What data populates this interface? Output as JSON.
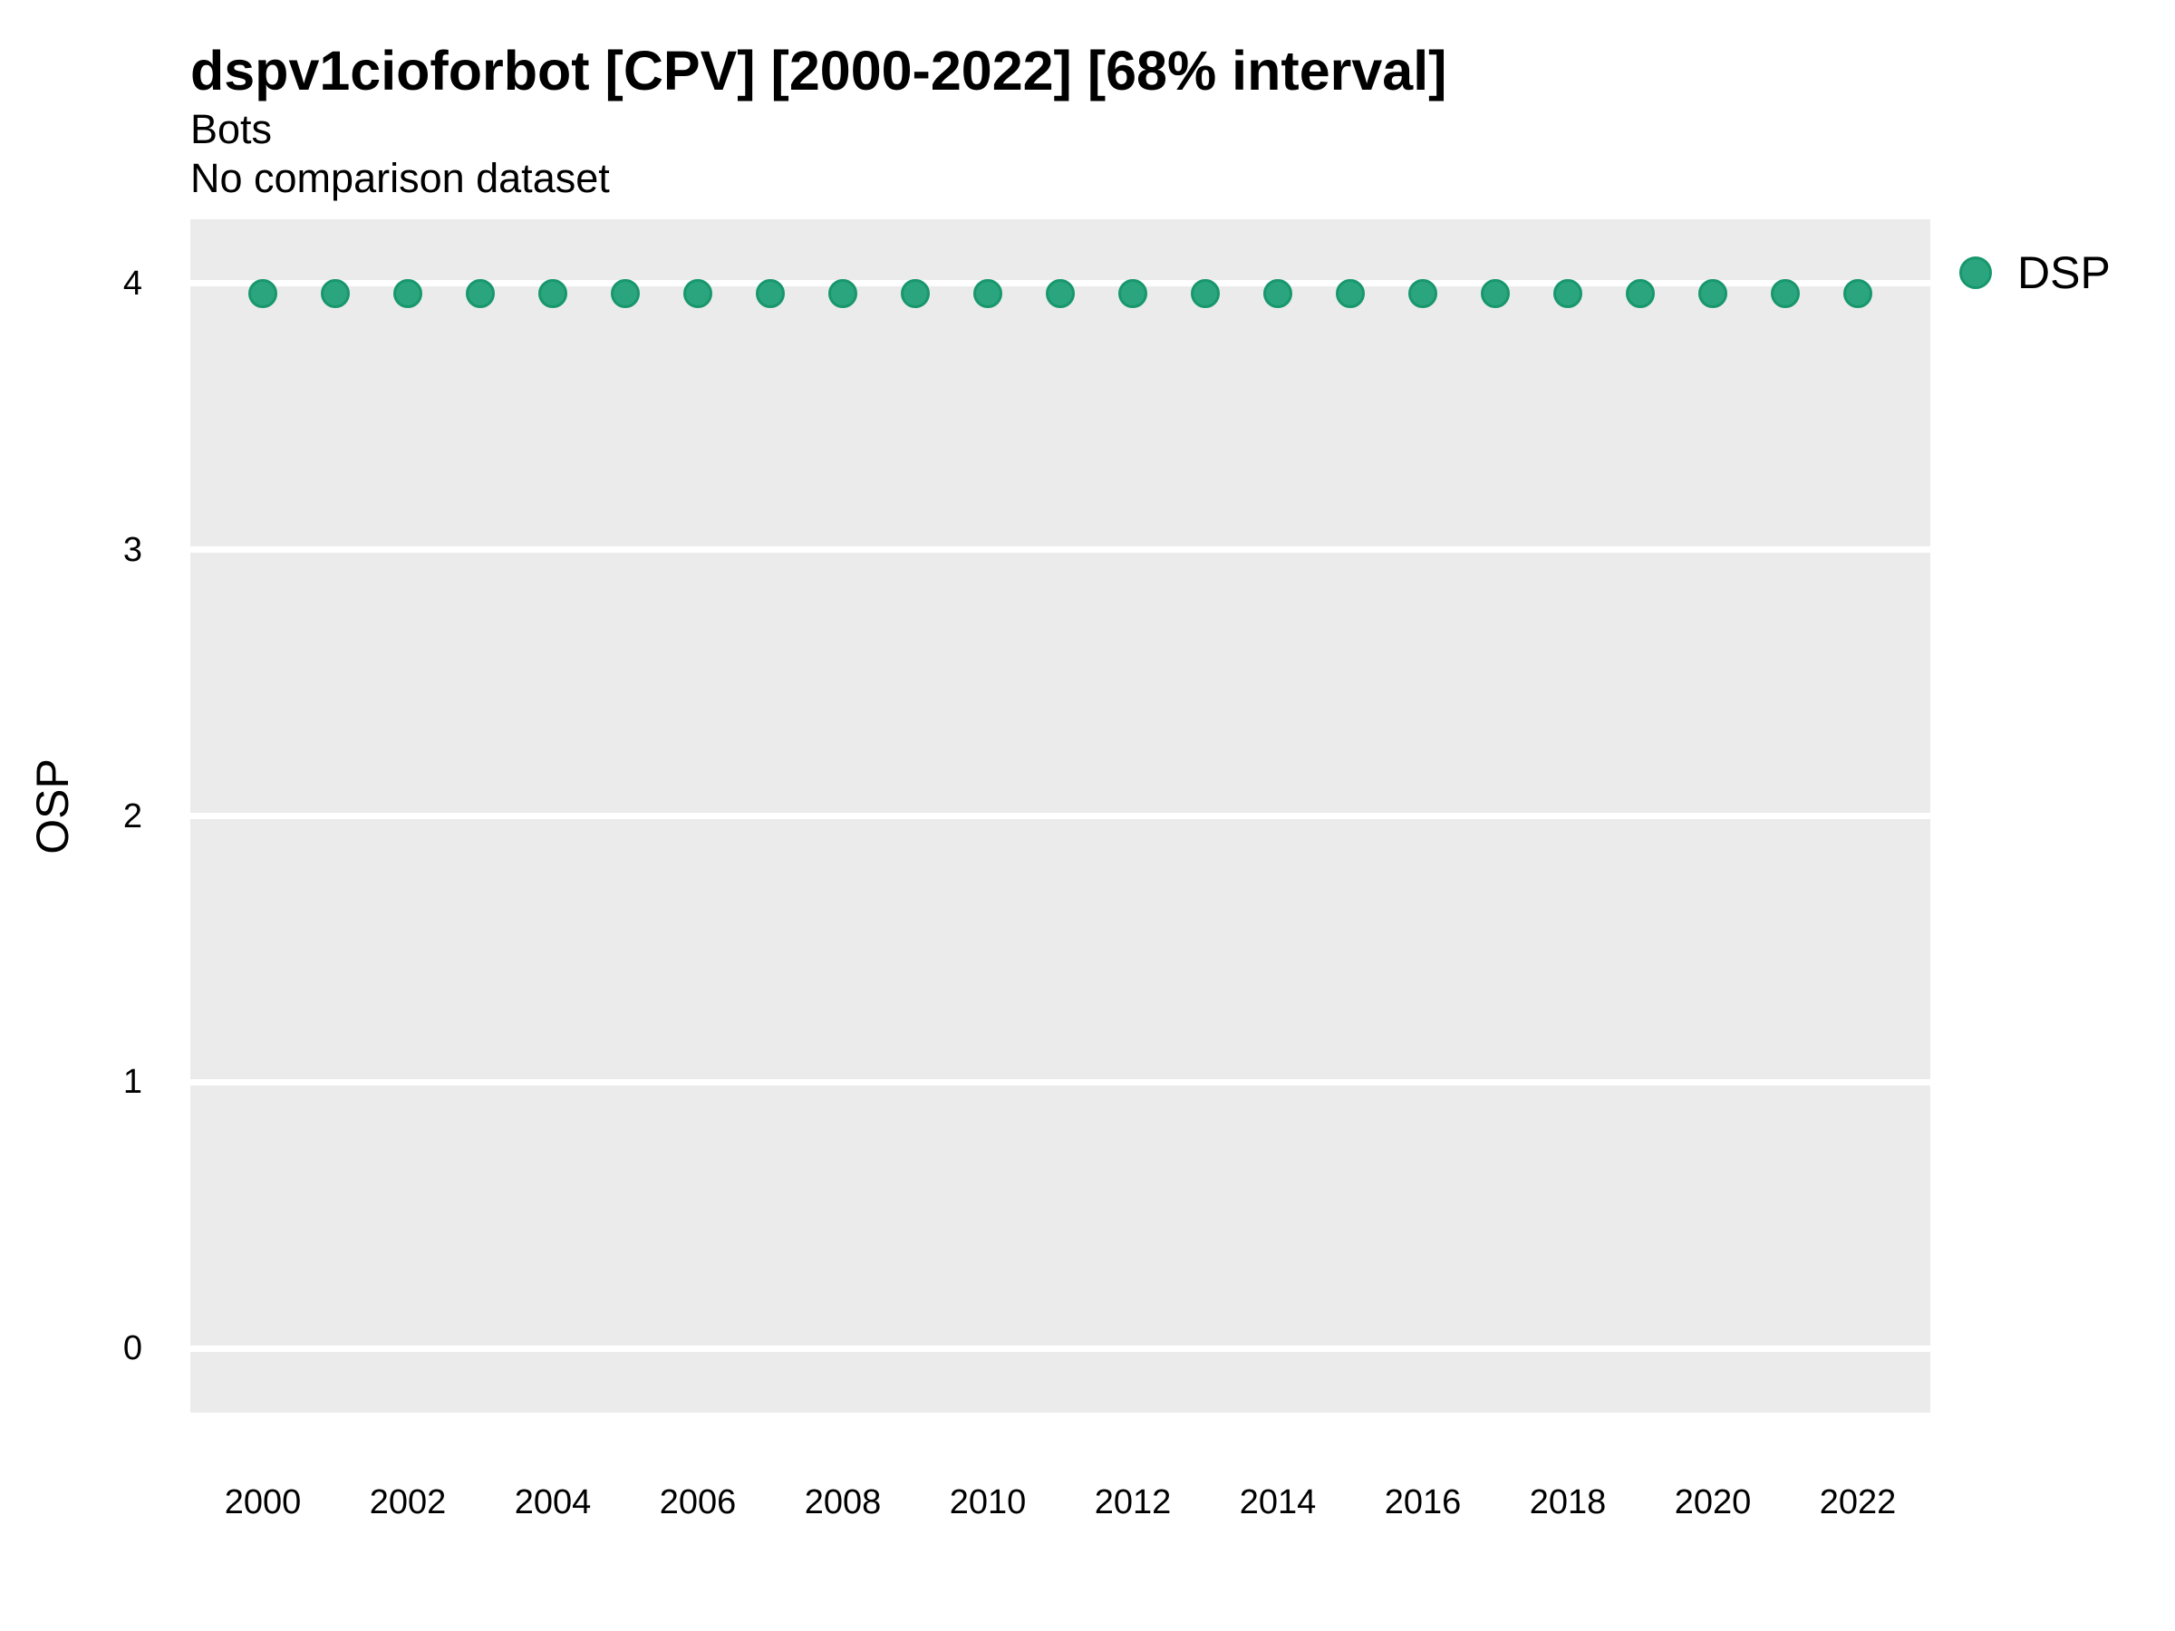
{
  "title": "dspv1cioforbot [CPV] [2000-2022] [68% interval]",
  "subtitle": "Bots",
  "note": "No comparison dataset",
  "y_axis_title": "OSP",
  "legend": [
    {
      "label": "DSP",
      "fill": "#2BA57E",
      "stroke": "#18976D"
    }
  ],
  "colors": {
    "panel_background": "#EBEBEB",
    "gridline": "#FFFFFF",
    "point_fill": "#2BA57E",
    "point_stroke": "#18976D",
    "text": "#000000",
    "figure_background": "#FFFFFF"
  },
  "chart_data": {
    "type": "scatter",
    "title": "dspv1cioforbot [CPV] [2000-2022] [68% interval]",
    "subtitle": "Bots",
    "annotation": "No comparison dataset",
    "xlabel": "",
    "ylabel": "OSP",
    "x_ticks": [
      2000,
      2002,
      2004,
      2006,
      2008,
      2010,
      2012,
      2014,
      2016,
      2018,
      2020,
      2022
    ],
    "y_ticks": [
      4,
      3,
      2,
      1,
      0
    ],
    "xlim": [
      1999,
      2023
    ],
    "ylim": [
      -0.24,
      4.24
    ],
    "grid": "horizontal major gridlines only, white on gray panel",
    "legend_position": "right",
    "series": [
      {
        "name": "DSP",
        "fill": "#2BA57E",
        "stroke": "#18976D",
        "x": [
          2000,
          2001,
          2002,
          2003,
          2004,
          2005,
          2006,
          2007,
          2008,
          2009,
          2010,
          2011,
          2012,
          2013,
          2014,
          2015,
          2016,
          2017,
          2018,
          2019,
          2020,
          2021,
          2022
        ],
        "y": [
          3.96,
          3.96,
          3.96,
          3.96,
          3.96,
          3.96,
          3.96,
          3.96,
          3.96,
          3.96,
          3.96,
          3.96,
          3.96,
          3.96,
          3.96,
          3.96,
          3.96,
          3.96,
          3.96,
          3.96,
          3.96,
          3.96,
          3.96
        ]
      }
    ]
  }
}
